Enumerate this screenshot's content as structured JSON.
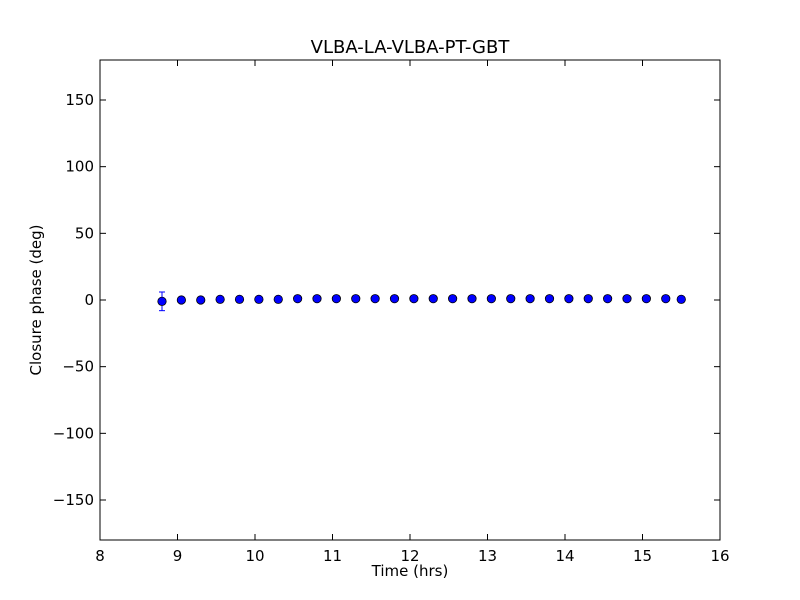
{
  "chart_data": {
    "type": "scatter",
    "title": "VLBA-LA-VLBA-PT-GBT",
    "xlabel": "Time (hrs)",
    "ylabel": "Closure phase (deg)",
    "xlim": [
      8,
      16
    ],
    "ylim": [
      -180,
      180
    ],
    "xticks": [
      8,
      9,
      10,
      11,
      12,
      13,
      14,
      15,
      16
    ],
    "yticks": [
      -150,
      -100,
      -50,
      0,
      50,
      100,
      150
    ],
    "xtick_labels": [
      "8",
      "9",
      "10",
      "11",
      "12",
      "13",
      "14",
      "15",
      "16"
    ],
    "ytick_labels": [
      "−150",
      "−100",
      "−50",
      "0",
      "50",
      "100",
      "150"
    ],
    "grid": false,
    "marker_color": "#0000ff",
    "errorbar_color": "#0000ff",
    "series": [
      {
        "x": [
          8.8,
          9.05,
          9.3,
          9.55,
          9.8,
          10.05,
          10.3,
          10.55,
          10.8,
          11.05,
          11.3,
          11.55,
          11.8,
          12.05,
          12.3,
          12.55,
          12.8,
          13.05,
          13.3,
          13.55,
          13.8,
          14.05,
          14.3,
          14.55,
          14.8,
          15.05,
          15.3,
          15.5
        ],
        "y": [
          -1,
          0,
          0,
          0.5,
          0.5,
          0.5,
          0.5,
          1,
          1,
          1,
          1,
          1,
          1,
          1,
          1,
          1,
          1,
          1,
          1,
          1,
          1,
          1,
          1,
          1,
          1,
          1,
          1,
          0.5
        ],
        "yerr": [
          7,
          0,
          0,
          0,
          0,
          0,
          0,
          0,
          0,
          0,
          0,
          0,
          0,
          0,
          0,
          0,
          0,
          0,
          0,
          0,
          0,
          0,
          0,
          0,
          0,
          0,
          0,
          0
        ]
      }
    ]
  }
}
